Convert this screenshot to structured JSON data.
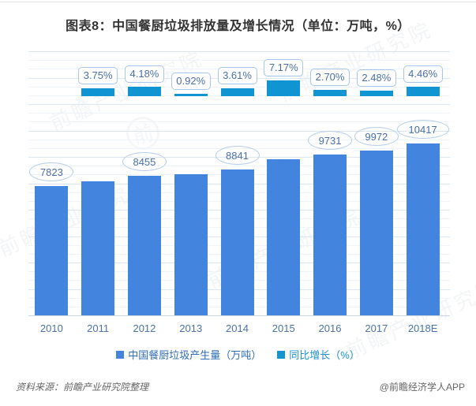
{
  "title": "图表8：中国餐厨垃圾排放量及增长情况（单位：万吨，%）",
  "watermark": {
    "text": "前瞻产业研究院",
    "logo_text": "前"
  },
  "chart_data": {
    "type": "bar",
    "categories": [
      "2010",
      "2011",
      "2012",
      "2013",
      "2014",
      "2015",
      "2016",
      "2017",
      "2018E"
    ],
    "series": [
      {
        "name": "中国餐厨垃圾产生量（万吨）",
        "axis": "primary",
        "color": "#4384DE",
        "values": [
          7823,
          8116,
          8455,
          8533,
          8841,
          9475,
          9731,
          9972,
          10417
        ],
        "data_labels": [
          "7823",
          null,
          "8455",
          null,
          "8841",
          null,
          "9731",
          "9972",
          "10417"
        ]
      },
      {
        "name": "同比增长（%）",
        "axis": "secondary",
        "color": "#1094D2",
        "values": [
          null,
          3.75,
          4.18,
          0.92,
          3.61,
          7.17,
          2.7,
          2.48,
          4.46
        ],
        "data_labels": [
          null,
          "3.75%",
          "4.18%",
          "0.92%",
          "3.61%",
          "7.17%",
          "2.70%",
          "2.48%",
          "4.46%"
        ]
      }
    ],
    "title": "图表8：中国餐厨垃圾排放量及增长情况（单位：万吨，%）",
    "xlabel": "",
    "ylabel": "",
    "primary_ylim": [
      0,
      16000
    ],
    "secondary_ylim": [
      0,
      8
    ],
    "grid": true,
    "legend_position": "bottom",
    "data_label_shapes": {
      "primary": "ellipse",
      "secondary": "rounded-box"
    }
  },
  "colors": {
    "bar_primary": "#4384DE",
    "bar_secondary": "#1094D2",
    "label_text": "#4a6fa8",
    "axis_text": "#4b73a7",
    "legend_text_primary": "#2e6cb0",
    "legend_text_secondary": "#1e8fcd",
    "grid_major": "#dce6f1",
    "grid_minor": "#eef4fa",
    "axis_line": "#cdd6e0",
    "title_text": "#333333",
    "footer_text": "#666666"
  },
  "footer": {
    "source": "资料来源：前瞻产业研究院整理",
    "credit": "@前瞻经济学人APP"
  }
}
